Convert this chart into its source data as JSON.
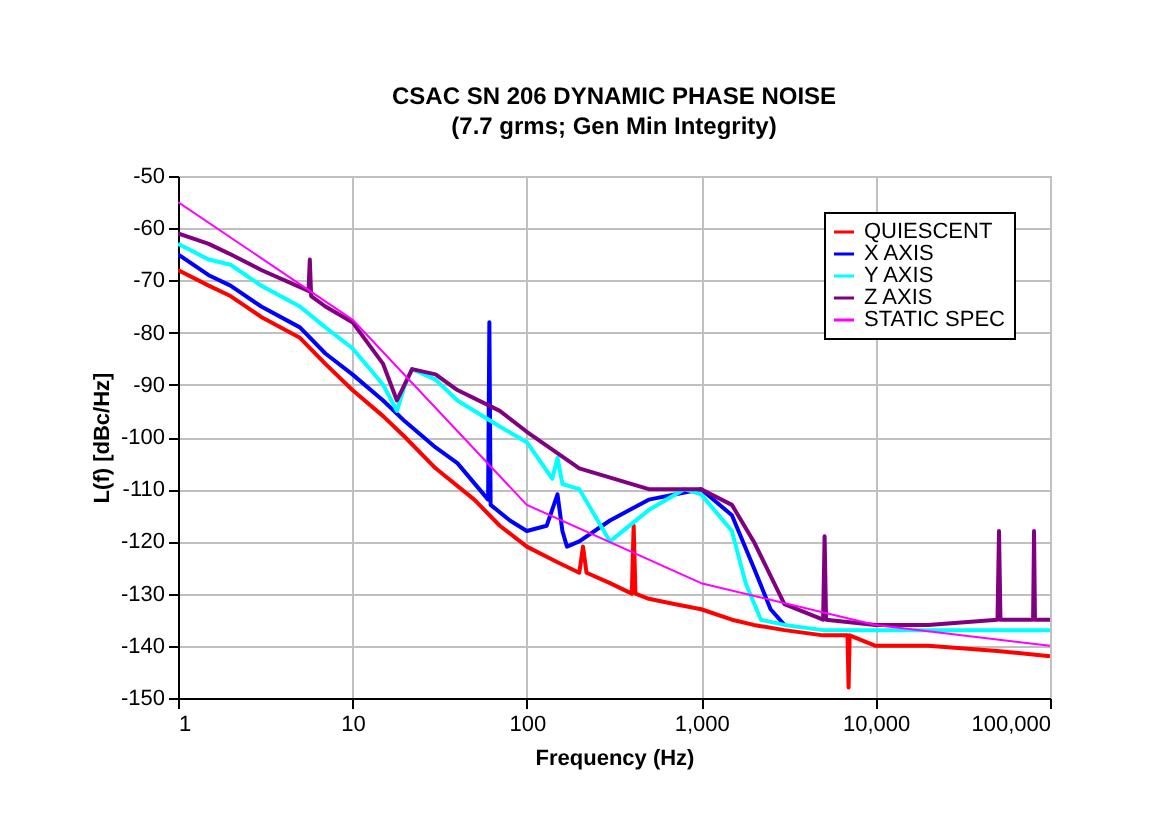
{
  "chart_data": {
    "type": "line",
    "title": "CSAC SN 206 DYNAMIC PHASE NOISE",
    "subtitle": "(7.7 grms; Gen Min Integrity)",
    "xlabel": "Frequency (Hz)",
    "ylabel": "L(f) [dBc/Hz]",
    "log": "x",
    "grid": true,
    "legend": "top right",
    "line_style": "solid",
    "marker": "none",
    "xlim": [
      1,
      100000
    ],
    "xticks": [
      1,
      10,
      100,
      {
        "value": 1000,
        "label": "1,000"
      },
      {
        "value": 10000,
        "label": "10,000"
      },
      {
        "value": 100000,
        "label": "100,000"
      }
    ],
    "ylim": [
      -150,
      -50
    ],
    "yticks": [
      -150,
      -140,
      -130,
      -120,
      -110,
      -100,
      -90,
      -80,
      -70,
      -60,
      -50
    ],
    "series": [
      {
        "name": "QUIESCENT",
        "color": "#ff0000",
        "x": [
          1,
          1.5,
          2,
          3,
          5,
          7,
          10,
          15,
          20,
          30,
          50,
          70,
          100,
          150,
          200,
          210,
          220,
          300,
          400,
          410,
          420,
          500,
          700,
          1000,
          1500,
          2000,
          3000,
          5000,
          6900,
          7000,
          7100,
          10000,
          20000,
          50000,
          100000
        ],
        "values": [
          -68,
          -71,
          -73,
          -77,
          -81,
          -86,
          -91,
          -96,
          -100,
          -106,
          -112,
          -117,
          -121,
          -124,
          -126,
          -121,
          -126,
          -128,
          -130,
          -117,
          -130,
          -131,
          -132,
          -133,
          -135,
          -136,
          -137,
          -138,
          -138,
          -148,
          -138,
          -140,
          -140,
          -141,
          -142
        ]
      },
      {
        "name": "X AXIS",
        "color": "#0000ff",
        "x": [
          1,
          1.5,
          2,
          3,
          5,
          7,
          10,
          15,
          20,
          30,
          40,
          60,
          61,
          62,
          80,
          100,
          130,
          150,
          160,
          170,
          200,
          300,
          500,
          1000,
          1500,
          2000,
          2500,
          3000
        ],
        "values": [
          -65,
          -69,
          -71,
          -75,
          -79,
          -84,
          -88,
          -93,
          -97,
          -102,
          -105,
          -112,
          -78,
          -113,
          -116,
          -118,
          -117,
          -111,
          -118,
          -121,
          -120,
          -116,
          -112,
          -110,
          -115,
          -125,
          -133,
          -136
        ]
      },
      {
        "name": "Y AXIS",
        "color": "#00ffff",
        "x": [
          1,
          1.5,
          2,
          3,
          5,
          7,
          10,
          15,
          18,
          20,
          22,
          30,
          40,
          70,
          100,
          140,
          150,
          160,
          200,
          300,
          500,
          800,
          1000,
          1500,
          1800,
          2200,
          3000,
          5000,
          10000,
          30000,
          100000
        ],
        "values": [
          -63,
          -66,
          -67,
          -71,
          -75,
          -79,
          -83,
          -90,
          -95,
          -90,
          -87,
          -89,
          -93,
          -98,
          -101,
          -108,
          -104,
          -109,
          -110,
          -120,
          -114,
          -110,
          -111,
          -118,
          -128,
          -135,
          -136,
          -137,
          -137,
          -137,
          -137
        ]
      },
      {
        "name": "Z AXIS",
        "color": "#800080",
        "x": [
          1,
          1.5,
          2,
          3,
          5.6,
          5.7,
          5.8,
          7,
          10,
          15,
          18,
          22,
          30,
          40,
          70,
          100,
          200,
          500,
          1000,
          1500,
          2000,
          3000,
          5000,
          5100,
          5200,
          10000,
          20000,
          50000,
          51000,
          52000,
          80000,
          81000,
          82000,
          100000
        ],
        "values": [
          -61,
          -63,
          -65,
          -68,
          -72,
          -66,
          -73,
          -75,
          -78,
          -86,
          -93,
          -87,
          -88,
          -91,
          -95,
          -99,
          -106,
          -110,
          -110,
          -113,
          -120,
          -132,
          -135,
          -119,
          -135,
          -136,
          -136,
          -135,
          -118,
          -135,
          -135,
          -118,
          -135,
          -135
        ]
      },
      {
        "name": "STATIC SPEC",
        "color": "#ff00ff",
        "x": [
          1,
          10,
          100,
          1000,
          10000,
          100000
        ],
        "values": [
          -55,
          -77.5,
          -113,
          -128,
          -136,
          -140
        ]
      }
    ]
  }
}
